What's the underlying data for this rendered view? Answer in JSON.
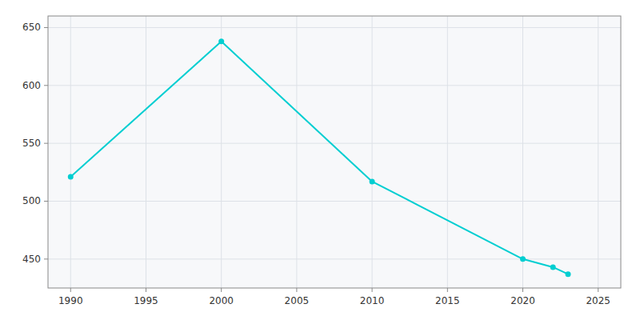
{
  "chart_data": {
    "type": "line",
    "x": [
      1990,
      2000,
      2010,
      2020,
      2022,
      2023
    ],
    "values": [
      521,
      638,
      517,
      450,
      443,
      437
    ],
    "color": "#00CED1",
    "marker": "circle",
    "xlim": [
      1988.5,
      2026.5
    ],
    "ylim": [
      425,
      660
    ],
    "xticks": [
      1990,
      1995,
      2000,
      2005,
      2010,
      2015,
      2020,
      2025
    ],
    "yticks": [
      450,
      500,
      550,
      600,
      650
    ],
    "grid": true
  }
}
